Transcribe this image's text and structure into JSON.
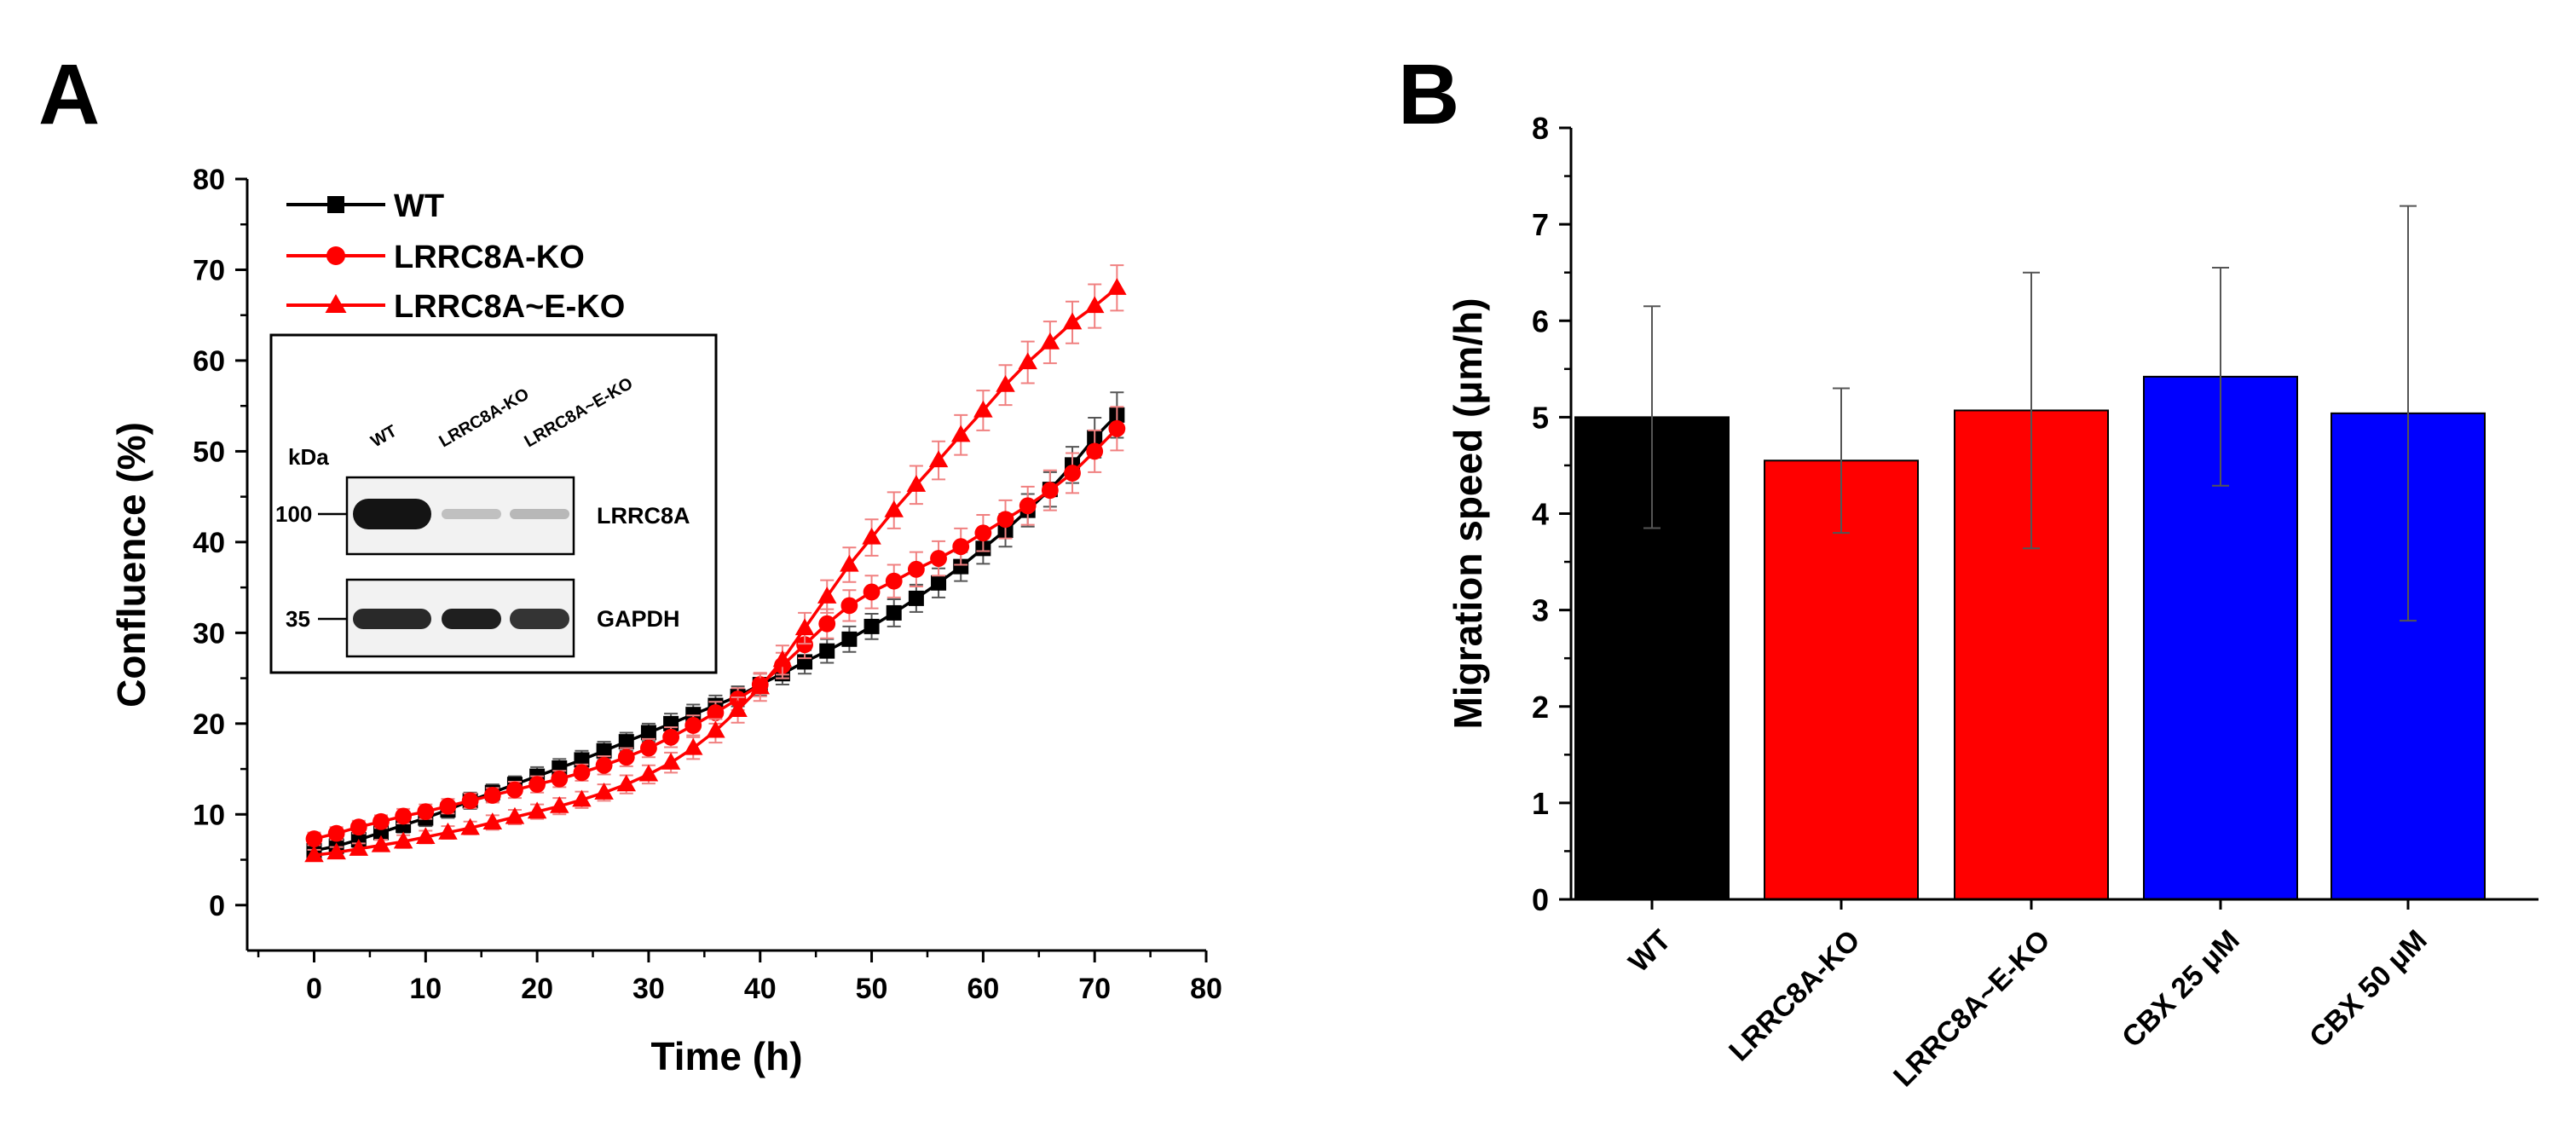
{
  "panels": {
    "a": "A",
    "b": "B"
  },
  "chart_data": [
    {
      "type": "line",
      "panel": "A",
      "xlabel": "Time (h)",
      "ylabel": "Confluence (%)",
      "xlim": [
        -6,
        80
      ],
      "ylim": [
        -5,
        80
      ],
      "xticks": [
        0,
        10,
        20,
        30,
        40,
        50,
        60,
        70,
        80
      ],
      "yticks": [
        0,
        10,
        20,
        30,
        40,
        50,
        60,
        70,
        80
      ],
      "legend_position": "top-left",
      "x": [
        0,
        2,
        4,
        6,
        8,
        10,
        12,
        14,
        16,
        18,
        20,
        22,
        24,
        26,
        28,
        30,
        32,
        34,
        36,
        38,
        40,
        42,
        44,
        46,
        48,
        50,
        52,
        54,
        56,
        58,
        60,
        62,
        64,
        66,
        68,
        70,
        72
      ],
      "series": [
        {
          "name": "WT",
          "color": "#000000",
          "marker": "square",
          "values": [
            6.0,
            6.5,
            7.2,
            8.0,
            8.8,
            9.6,
            10.5,
            11.5,
            12.4,
            13.3,
            14.2,
            15.1,
            16.0,
            17.0,
            18.0,
            19.0,
            20.0,
            21.0,
            22.0,
            23.0,
            24.3,
            25.5,
            26.8,
            28.0,
            29.3,
            30.7,
            32.2,
            33.8,
            35.5,
            37.3,
            39.3,
            41.3,
            43.5,
            45.8,
            48.5,
            51.5,
            54.0
          ],
          "errors": [
            0.8,
            0.8,
            0.8,
            0.8,
            0.8,
            0.9,
            0.9,
            0.9,
            0.9,
            0.9,
            1.0,
            1.0,
            1.0,
            1.0,
            1.0,
            1.0,
            1.1,
            1.1,
            1.1,
            1.1,
            1.2,
            1.2,
            1.3,
            1.3,
            1.4,
            1.4,
            1.5,
            1.5,
            1.6,
            1.6,
            1.7,
            1.8,
            1.8,
            1.9,
            2.0,
            2.2,
            2.5
          ]
        },
        {
          "name": "LRRC8A-KO",
          "color": "#ff0000",
          "marker": "circle",
          "values": [
            7.3,
            7.9,
            8.6,
            9.2,
            9.8,
            10.3,
            10.9,
            11.5,
            12.1,
            12.7,
            13.3,
            13.9,
            14.6,
            15.4,
            16.3,
            17.3,
            18.5,
            19.8,
            21.2,
            22.7,
            24.3,
            26.4,
            28.7,
            31.0,
            33.0,
            34.5,
            35.7,
            37.0,
            38.2,
            39.5,
            41.0,
            42.5,
            44.0,
            45.7,
            47.6,
            50.0,
            52.5
          ],
          "errors": [
            0.7,
            0.7,
            0.7,
            0.7,
            0.8,
            0.8,
            0.8,
            0.8,
            0.8,
            0.9,
            0.9,
            0.9,
            0.9,
            1.0,
            1.0,
            1.0,
            1.1,
            1.1,
            1.2,
            1.2,
            1.3,
            1.4,
            1.5,
            1.6,
            1.7,
            1.8,
            1.8,
            1.9,
            1.9,
            2.0,
            2.0,
            2.1,
            2.1,
            2.2,
            2.2,
            2.3,
            2.4
          ]
        },
        {
          "name": "LRRC8A~E-KO",
          "color": "#ff0000",
          "marker": "triangle",
          "values": [
            5.5,
            5.8,
            6.2,
            6.6,
            7.0,
            7.5,
            8.0,
            8.5,
            9.1,
            9.7,
            10.3,
            10.9,
            11.6,
            12.4,
            13.3,
            14.4,
            15.7,
            17.3,
            19.2,
            21.5,
            24.0,
            27.0,
            30.5,
            34.0,
            37.5,
            40.5,
            43.5,
            46.3,
            49.0,
            51.8,
            54.5,
            57.3,
            59.8,
            62.0,
            64.2,
            66.0,
            68.0
          ],
          "errors": [
            0.6,
            0.6,
            0.6,
            0.6,
            0.7,
            0.7,
            0.7,
            0.7,
            0.8,
            0.8,
            0.8,
            0.9,
            0.9,
            0.9,
            1.0,
            1.0,
            1.1,
            1.2,
            1.3,
            1.4,
            1.5,
            1.6,
            1.7,
            1.8,
            1.9,
            2.0,
            2.0,
            2.1,
            2.1,
            2.2,
            2.2,
            2.2,
            2.3,
            2.3,
            2.3,
            2.4,
            2.5
          ]
        }
      ],
      "inset": {
        "type": "western-blot",
        "lanes": [
          "WT",
          "LRRC8A-KO",
          "LRRC8A~E-KO"
        ],
        "kda_label": "kDa",
        "markers": [
          "100",
          "35"
        ],
        "bands": [
          {
            "target": "LRRC8A",
            "intensities": [
              1.0,
              0.18,
              0.22
            ]
          },
          {
            "target": "GAPDH",
            "intensities": [
              0.9,
              0.95,
              0.85
            ]
          }
        ]
      }
    },
    {
      "type": "bar",
      "panel": "B",
      "xlabel": "",
      "ylabel": "Migration speed (μm/h)",
      "ylim": [
        0,
        8
      ],
      "yticks": [
        0,
        1,
        2,
        3,
        4,
        5,
        6,
        7,
        8
      ],
      "categories": [
        "WT",
        "LRRC8A-KO",
        "LRRC8A~E-KO",
        "CBX 25 μM",
        "CBX 50 μM"
      ],
      "values": [
        5.0,
        4.55,
        5.07,
        5.42,
        5.04
      ],
      "errors": [
        1.15,
        0.75,
        1.43,
        1.13,
        2.15
      ],
      "colors": [
        "#000000",
        "#ff0000",
        "#ff0000",
        "#0000ff",
        "#0000ff"
      ]
    }
  ]
}
